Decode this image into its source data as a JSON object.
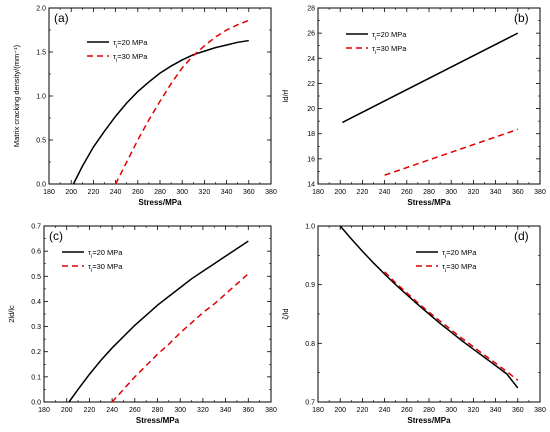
{
  "chart_data": [
    {
      "type": "line",
      "panel_label": "(a)",
      "xlabel": "Stress/MPa",
      "ylabel": "Matrix cracking density/(mm⁻¹)",
      "xlim": [
        180,
        380
      ],
      "ylim": [
        0.0,
        2.0
      ],
      "xticks": [
        180,
        200,
        220,
        240,
        260,
        280,
        300,
        320,
        340,
        360,
        380
      ],
      "yticks": [
        0.0,
        0.5,
        1.0,
        1.5,
        2.0
      ],
      "ytick_labels": [
        "0.0",
        "0.5",
        "1.0",
        "1.5",
        "2.0"
      ],
      "legend_position": "upper-left",
      "series": [
        {
          "name": "τi=20 MPa",
          "color": "#000000",
          "dash": "solid",
          "x": [
            202,
            210,
            220,
            230,
            240,
            250,
            260,
            270,
            280,
            290,
            300,
            310,
            320,
            330,
            340,
            350,
            360
          ],
          "y": [
            0.0,
            0.2,
            0.42,
            0.6,
            0.77,
            0.92,
            1.05,
            1.16,
            1.26,
            1.34,
            1.41,
            1.47,
            1.51,
            1.55,
            1.58,
            1.61,
            1.63
          ]
        },
        {
          "name": "τi=30 MPa",
          "color": "#e00000",
          "dash": "dashed",
          "x": [
            240,
            250,
            260,
            270,
            280,
            290,
            300,
            310,
            320,
            330,
            340,
            350,
            360
          ],
          "y": [
            0.0,
            0.25,
            0.5,
            0.73,
            0.94,
            1.14,
            1.32,
            1.46,
            1.57,
            1.67,
            1.75,
            1.81,
            1.86
          ]
        }
      ]
    },
    {
      "type": "line",
      "panel_label": "(b)",
      "xlabel": "Stress/MPa",
      "ylabel": "ld/rf",
      "xlim": [
        180,
        380
      ],
      "ylim": [
        14,
        28
      ],
      "xticks": [
        180,
        200,
        220,
        240,
        260,
        280,
        300,
        320,
        340,
        360,
        380
      ],
      "yticks": [
        14,
        16,
        18,
        20,
        22,
        24,
        26,
        28
      ],
      "ytick_labels": [
        "14",
        "16",
        "18",
        "20",
        "22",
        "24",
        "26",
        "28"
      ],
      "legend_position": "upper-left",
      "series": [
        {
          "name": "τi=20 MPa",
          "color": "#000000",
          "dash": "solid",
          "x": [
            202,
            360
          ],
          "y": [
            18.9,
            26.0
          ]
        },
        {
          "name": "τi=30 MPa",
          "color": "#e00000",
          "dash": "dashed",
          "x": [
            240,
            360
          ],
          "y": [
            14.7,
            18.35
          ]
        }
      ]
    },
    {
      "type": "line",
      "panel_label": "(c)",
      "xlabel": "Stress/MPa",
      "ylabel": "2ld/lc",
      "xlim": [
        180,
        380
      ],
      "ylim": [
        0.0,
        0.7
      ],
      "xticks": [
        180,
        200,
        220,
        240,
        260,
        280,
        300,
        320,
        340,
        360,
        380
      ],
      "yticks": [
        0.0,
        0.1,
        0.2,
        0.3,
        0.4,
        0.5,
        0.6,
        0.7
      ],
      "ytick_labels": [
        "0.0",
        "0.1",
        "0.2",
        "0.3",
        "0.4",
        "0.5",
        "0.6",
        "0.7"
      ],
      "legend_position": "upper-left",
      "series": [
        {
          "name": "τi=20 MPa",
          "color": "#000000",
          "dash": "solid",
          "x": [
            202,
            210,
            220,
            230,
            240,
            250,
            260,
            270,
            280,
            290,
            300,
            310,
            320,
            330,
            340,
            350,
            360
          ],
          "y": [
            0.0,
            0.05,
            0.11,
            0.165,
            0.215,
            0.26,
            0.305,
            0.345,
            0.385,
            0.42,
            0.455,
            0.49,
            0.52,
            0.55,
            0.58,
            0.61,
            0.64
          ]
        },
        {
          "name": "τi=30 MPa",
          "color": "#e00000",
          "dash": "dashed",
          "x": [
            240,
            250,
            260,
            270,
            280,
            290,
            300,
            310,
            320,
            330,
            340,
            350,
            360
          ],
          "y": [
            0.0,
            0.05,
            0.1,
            0.145,
            0.19,
            0.23,
            0.275,
            0.315,
            0.355,
            0.39,
            0.43,
            0.47,
            0.51
          ]
        }
      ]
    },
    {
      "type": "line",
      "panel_label": "(d)",
      "xlabel": "Stress/MPa",
      "ylabel": "ζ/ld",
      "xlim": [
        180,
        380
      ],
      "ylim": [
        0.7,
        1.0
      ],
      "xticks": [
        180,
        200,
        220,
        240,
        260,
        280,
        300,
        320,
        340,
        360,
        380
      ],
      "yticks": [
        0.7,
        0.8,
        0.9,
        1.0
      ],
      "ytick_labels": [
        "0.7",
        "0.8",
        "0.9",
        "1.0"
      ],
      "legend_position": "upper-right",
      "series": [
        {
          "name": "τi=20 MPa",
          "color": "#000000",
          "dash": "solid",
          "x": [
            200,
            210,
            220,
            230,
            240,
            250,
            260,
            270,
            280,
            290,
            300,
            310,
            320,
            330,
            340,
            350,
            360
          ],
          "y": [
            1.0,
            0.978,
            0.957,
            0.937,
            0.918,
            0.9,
            0.883,
            0.866,
            0.85,
            0.834,
            0.819,
            0.804,
            0.79,
            0.776,
            0.762,
            0.748,
            0.724
          ]
        },
        {
          "name": "τi=30 MPa",
          "color": "#e00000",
          "dash": "dashed",
          "x": [
            240,
            250,
            260,
            270,
            280,
            290,
            300,
            310,
            320,
            330,
            340,
            350,
            360
          ],
          "y": [
            0.922,
            0.903,
            0.886,
            0.869,
            0.853,
            0.838,
            0.823,
            0.808,
            0.794,
            0.78,
            0.766,
            0.752,
            0.737
          ]
        }
      ]
    }
  ]
}
